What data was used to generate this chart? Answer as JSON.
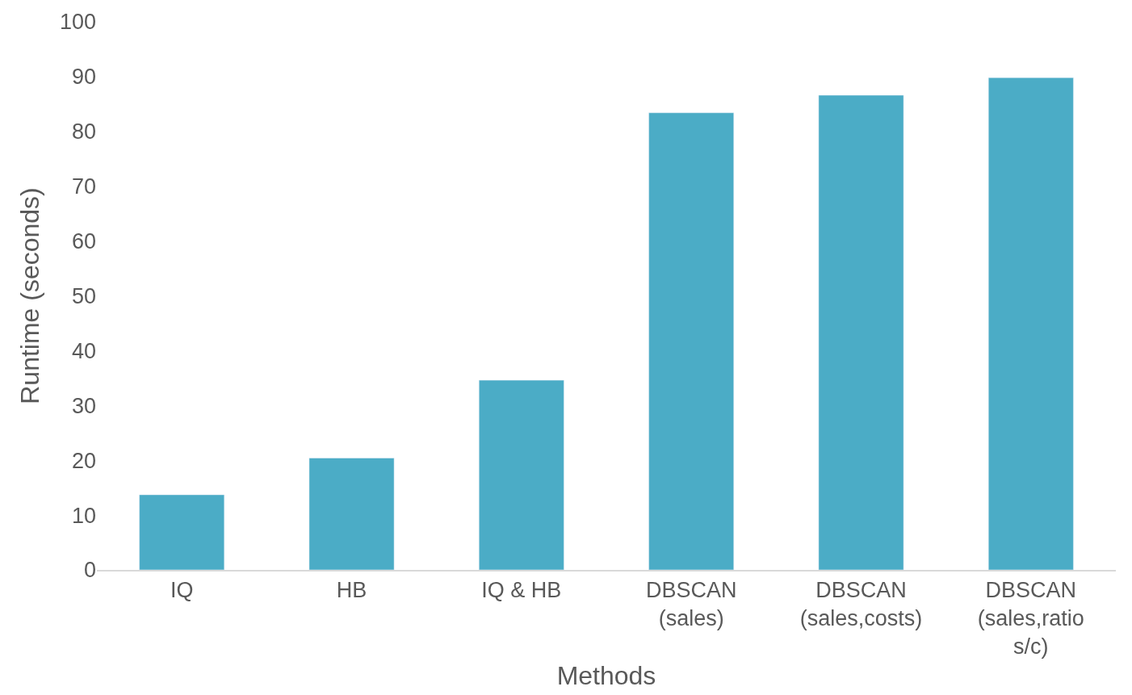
{
  "chart_data": {
    "type": "bar",
    "xlabel": "Methods",
    "ylabel": "Runtime (seconds)",
    "categories": [
      "IQ",
      "HB",
      "IQ & HB",
      "DBSCAN\n(sales)",
      "DBSCAN\n(sales,costs)",
      "DBSCAN\n(sales,ratio\ns/c)"
    ],
    "values": [
      13.7,
      20.4,
      34.6,
      83.4,
      86.6,
      89.8
    ],
    "color": "#4bacc6",
    "ylim": [
      0,
      100
    ],
    "yticks": [
      0,
      10,
      20,
      30,
      40,
      50,
      60,
      70,
      80,
      90,
      100
    ],
    "grid": false
  }
}
